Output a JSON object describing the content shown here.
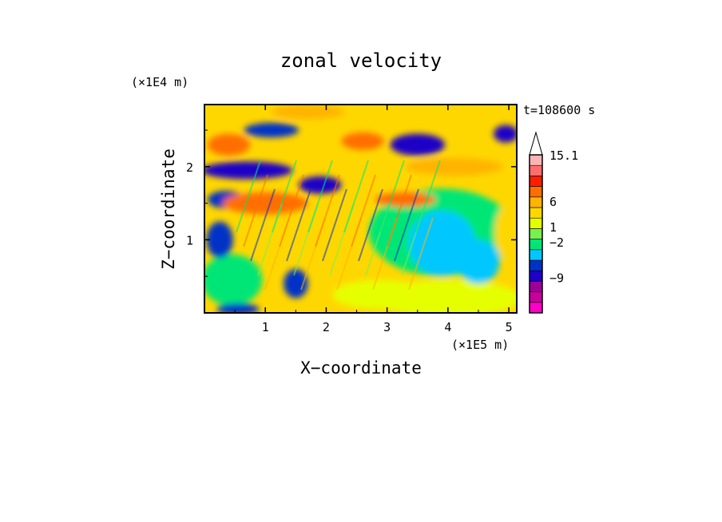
{
  "chart_data": {
    "type": "heatmap",
    "title": "zonal velocity",
    "xlabel": "X−coordinate",
    "ylabel": "Z−coordinate",
    "x_unit_label": "(×1E5 m)",
    "y_unit_label": "(×1E4 m)",
    "time_label": "t=108600 s",
    "xlim": [
      0,
      5.13
    ],
    "ylim": [
      0,
      2.85
    ],
    "x_ticks": [
      1,
      2,
      3,
      4,
      5
    ],
    "x_tick_labels": [
      "1",
      "2",
      "3",
      "4",
      "5"
    ],
    "y_ticks": [
      1,
      2
    ],
    "y_tick_labels": [
      "1",
      "2"
    ],
    "colorbar": {
      "tick_labels": [
        {
          "text": "15.1",
          "value": 15.1
        },
        {
          "text": "6",
          "value": 6
        },
        {
          "text": "1",
          "value": 1
        },
        {
          "text": "−2",
          "value": -2
        },
        {
          "text": "−9",
          "value": -9
        }
      ],
      "levels": [
        {
          "color": "#ff00c8"
        },
        {
          "color": "#c8009c"
        },
        {
          "color": "#9c0096"
        },
        {
          "color": "#1e00c8"
        },
        {
          "color": "#0032c8"
        },
        {
          "color": "#00c8ff"
        },
        {
          "color": "#00e676"
        },
        {
          "color": "#78f050"
        },
        {
          "color": "#e6ff00"
        },
        {
          "color": "#ffd700"
        },
        {
          "color": "#ffb400"
        },
        {
          "color": "#ff6e00"
        },
        {
          "color": "#ff1e00"
        },
        {
          "color": "#ff6e6e"
        },
        {
          "color": "#ffb4b4"
        }
      ],
      "extend_max": true
    },
    "field_regions": [
      {
        "x": 0.45,
        "z": 0.45,
        "rx": 0.5,
        "rz": 0.35,
        "level": "#00e676"
      },
      {
        "x": 3.9,
        "z": 1.1,
        "rx": 1.2,
        "rz": 0.6,
        "level": "#00e676"
      },
      {
        "x": 4.0,
        "z": 0.2,
        "rx": 1.2,
        "rz": 0.25,
        "level": "#e6ff00"
      },
      {
        "x": 2.9,
        "z": 0.25,
        "rx": 0.8,
        "rz": 0.2,
        "level": "#e6ff00"
      },
      {
        "x": 3.9,
        "z": 0.95,
        "rx": 0.55,
        "rz": 0.45,
        "level": "#00c8ff"
      },
      {
        "x": 4.5,
        "z": 0.7,
        "rx": 0.35,
        "rz": 0.3,
        "level": "#00c8ff"
      },
      {
        "x": 0.7,
        "z": 1.95,
        "rx": 0.75,
        "rz": 0.12,
        "level": "#1e00c8"
      },
      {
        "x": 1.9,
        "z": 1.75,
        "rx": 0.35,
        "rz": 0.12,
        "level": "#1e00c8"
      },
      {
        "x": 3.5,
        "z": 2.3,
        "rx": 0.45,
        "rz": 0.15,
        "level": "#1e00c8"
      },
      {
        "x": 1.1,
        "z": 2.5,
        "rx": 0.45,
        "rz": 0.1,
        "level": "#0032c8"
      },
      {
        "x": 0.35,
        "z": 1.55,
        "rx": 0.3,
        "rz": 0.12,
        "level": "#0032c8"
      },
      {
        "x": 0.25,
        "z": 1.0,
        "rx": 0.22,
        "rz": 0.25,
        "level": "#0032c8"
      },
      {
        "x": 4.95,
        "z": 2.45,
        "rx": 0.2,
        "rz": 0.12,
        "level": "#1e00c8"
      },
      {
        "x": 1.0,
        "z": 1.5,
        "rx": 0.7,
        "rz": 0.15,
        "level": "#ff6e00"
      },
      {
        "x": 0.4,
        "z": 2.3,
        "rx": 0.35,
        "rz": 0.15,
        "level": "#ff6e00"
      },
      {
        "x": 2.6,
        "z": 2.35,
        "rx": 0.35,
        "rz": 0.12,
        "level": "#ff6e00"
      },
      {
        "x": 1.7,
        "z": 2.75,
        "rx": 0.6,
        "rz": 0.1,
        "level": "#ffb400"
      },
      {
        "x": 4.1,
        "z": 2.0,
        "rx": 0.8,
        "rz": 0.12,
        "level": "#ffb400"
      },
      {
        "x": 3.3,
        "z": 1.55,
        "rx": 0.5,
        "rz": 0.1,
        "level": "#ff6e00"
      },
      {
        "x": 1.5,
        "z": 0.4,
        "rx": 0.2,
        "rz": 0.2,
        "level": "#0032c8"
      },
      {
        "x": 0.55,
        "z": 0.05,
        "rx": 0.35,
        "rz": 0.08,
        "level": "#0032c8"
      },
      {
        "x": 2.3,
        "z": 0.7,
        "rx": 0.3,
        "rz": 0.3,
        "level": "#ffd700"
      },
      {
        "x": 1.9,
        "z": 1.05,
        "rx": 0.3,
        "rz": 0.25,
        "level": "#ffd700"
      },
      {
        "x": 4.95,
        "z": 1.1,
        "rx": 0.18,
        "rz": 0.35,
        "level": "#ffd700"
      }
    ]
  }
}
